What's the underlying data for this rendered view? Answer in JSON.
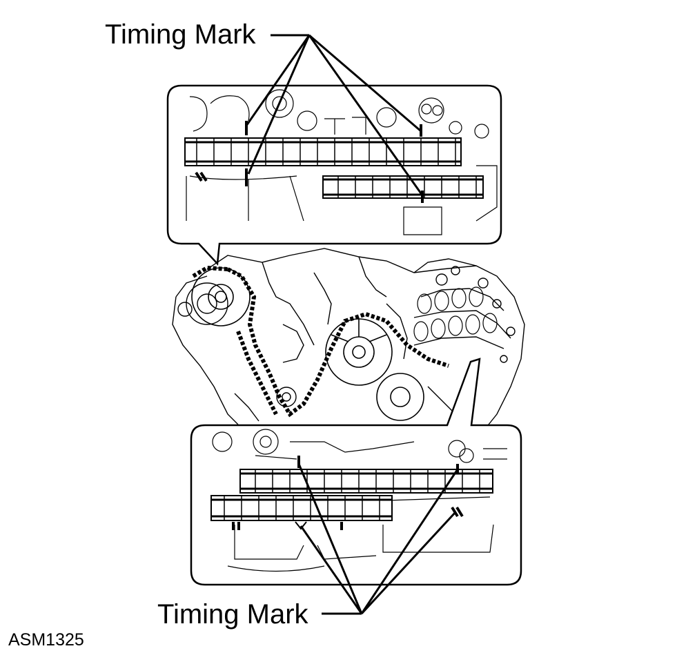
{
  "labels": {
    "top_callout": "Timing Mark",
    "bottom_callout": "Timing Mark",
    "figure_id": "ASM1325"
  },
  "colors": {
    "line": "#000000",
    "background": "#ffffff"
  }
}
